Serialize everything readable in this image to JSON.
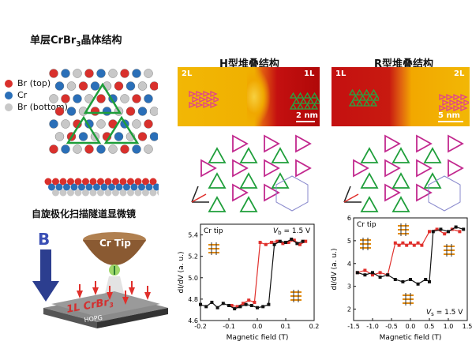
{
  "left_panel": {
    "title": "单层CrBr",
    "title_sub": "3",
    "title_suffix": "晶体结构",
    "legend": [
      {
        "label": "Br (top)",
        "color": "#d9302c"
      },
      {
        "label": "Cr",
        "color": "#2a6fb8"
      },
      {
        "label": "Br (bottom)",
        "color": "#c8c8c8"
      }
    ],
    "method_title": "自旋极化扫描隧道显微镜",
    "tip_label": "Cr Tip",
    "field_label": "B",
    "sample_label": "1L CrBr",
    "sample_sub": "3",
    "substrate_label": "HOPG"
  },
  "h_panel": {
    "title": "H型堆叠结构",
    "left_layer": "2L",
    "right_layer": "1L",
    "scale": "2 nm"
  },
  "r_panel": {
    "title": "R型堆叠结构",
    "left_layer": "1L",
    "right_layer": "2L",
    "scale": "5 nm"
  },
  "chart_data": [
    {
      "type": "scatter",
      "title": "",
      "tip_label": "Cr tip",
      "bias_label": "V",
      "bias_sub": "b",
      "bias_value": " = 1.5 V",
      "xlabel": "Magnetic field (T)",
      "ylabel": "dI/dV (a. u.)",
      "xlim": [
        -0.2,
        0.2
      ],
      "ylim": [
        4.6,
        5.5
      ],
      "xticks": [
        "-0.2",
        "-0.1",
        "0.0",
        "0.1",
        "0.2"
      ],
      "yticks": [
        "4.6",
        "4.8",
        "5.0",
        "5.2",
        "5.4"
      ],
      "series": [
        {
          "color": "#e0302c",
          "x": [
            -0.09,
            -0.07,
            -0.05,
            -0.03,
            -0.01,
            0.01,
            0.03,
            0.05,
            0.07,
            0.09,
            0.11,
            0.13,
            0.15,
            0.17
          ],
          "y": [
            4.74,
            4.73,
            4.76,
            4.79,
            4.77,
            5.33,
            5.31,
            5.33,
            5.34,
            5.32,
            5.33,
            5.35,
            5.31,
            5.34
          ]
        },
        {
          "color": "#111111",
          "x": [
            -0.2,
            -0.18,
            -0.16,
            -0.14,
            -0.12,
            -0.1,
            -0.08,
            -0.06,
            -0.04,
            -0.02,
            0.0,
            0.02,
            0.04,
            0.06,
            0.08,
            0.1,
            0.12,
            0.14,
            0.16
          ],
          "y": [
            4.75,
            4.73,
            4.77,
            4.72,
            4.76,
            4.74,
            4.71,
            4.73,
            4.75,
            4.74,
            4.72,
            4.73,
            4.75,
            5.31,
            5.34,
            5.33,
            5.36,
            5.32,
            5.34
          ]
        }
      ]
    },
    {
      "type": "scatter",
      "title": "",
      "tip_label": "Cr tip",
      "bias_label": "V",
      "bias_sub": "s",
      "bias_value": " = 1.5 V",
      "xlabel": "Magnetic field (T)",
      "ylabel": "dI/dV (a. u.)",
      "xlim": [
        -1.5,
        1.5
      ],
      "ylim": [
        1.5,
        6.0
      ],
      "xticks": [
        "-1.5",
        "-1.0",
        "-0.5",
        "0.0",
        "0.5",
        "1.0",
        "1.5"
      ],
      "yticks": [
        "2",
        "3",
        "4",
        "5",
        "6"
      ],
      "series": [
        {
          "color": "#e0302c",
          "x": [
            -1.4,
            -1.2,
            -1.0,
            -0.8,
            -0.6,
            -0.4,
            -0.3,
            -0.2,
            -0.1,
            0.0,
            0.1,
            0.2,
            0.3,
            0.5,
            0.7,
            0.9,
            1.1,
            1.3
          ],
          "y": [
            3.6,
            3.7,
            3.5,
            3.6,
            3.5,
            4.9,
            4.8,
            4.9,
            4.8,
            4.9,
            4.8,
            4.9,
            4.8,
            5.4,
            5.5,
            5.3,
            5.5,
            5.4
          ]
        },
        {
          "color": "#111111",
          "x": [
            -1.4,
            -1.2,
            -1.0,
            -0.8,
            -0.6,
            -0.4,
            -0.2,
            0.0,
            0.2,
            0.4,
            0.5,
            0.6,
            0.8,
            1.0,
            1.2,
            1.4
          ],
          "y": [
            3.6,
            3.5,
            3.6,
            3.4,
            3.5,
            3.3,
            3.2,
            3.3,
            3.1,
            3.3,
            3.2,
            5.4,
            5.5,
            5.4,
            5.6,
            5.5
          ]
        }
      ]
    }
  ]
}
